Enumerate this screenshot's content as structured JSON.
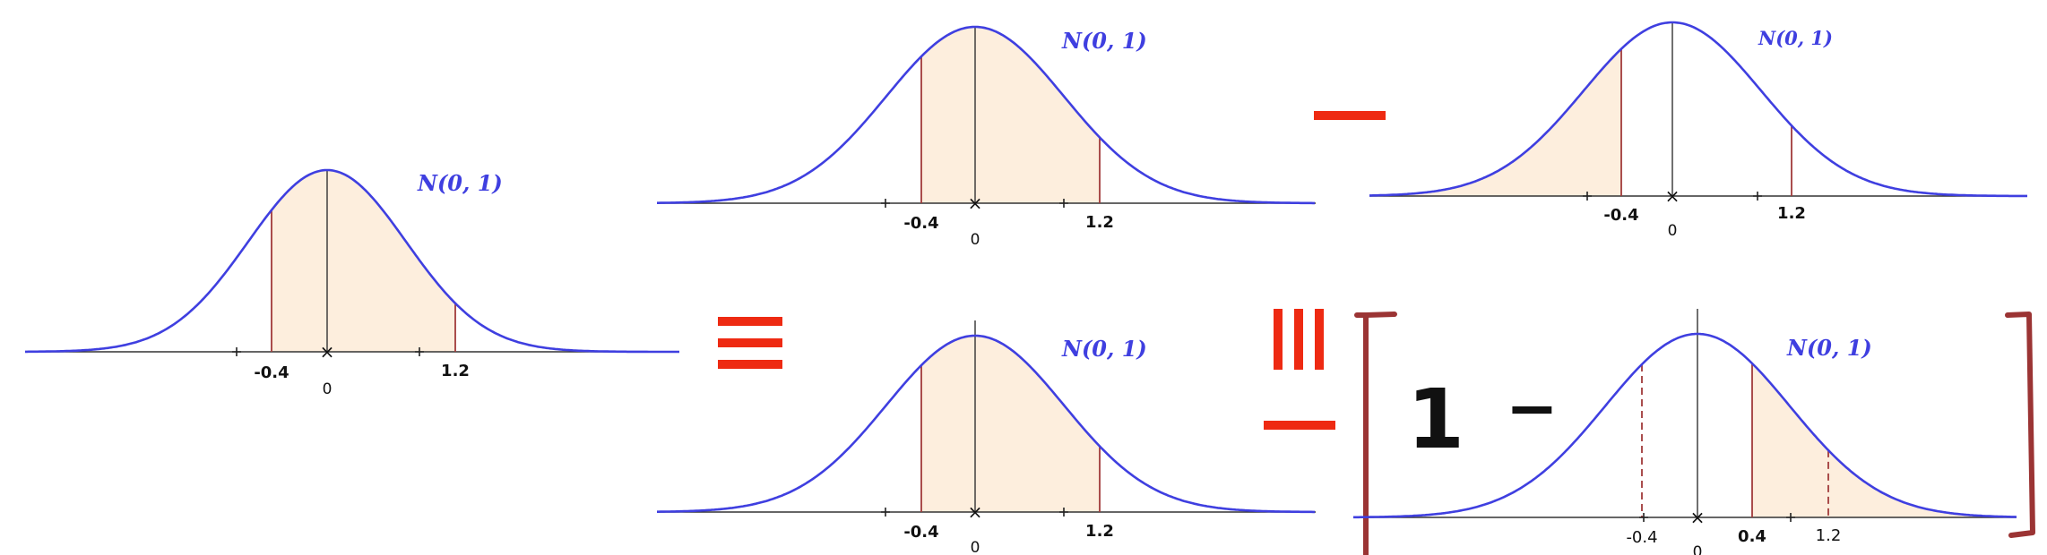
{
  "colors": {
    "curve": "#3f3fe0",
    "fill": "#fdeedd",
    "boundary": "#a03a3a",
    "axis": "#333333",
    "operator": "#ee2a12",
    "bracket": "#9b3434"
  },
  "distribution_label": "N(0,1)",
  "panels": [
    {
      "id": "left",
      "shade": "between",
      "lower": -0.4,
      "upper": 1.2,
      "ticks": [
        "-0.4",
        "0",
        "1.2"
      ]
    },
    {
      "id": "top-middle",
      "shade": "between",
      "lower": -0.4,
      "upper": 1.2,
      "ticks": [
        "-0.4",
        "0",
        "1.2"
      ]
    },
    {
      "id": "top-right",
      "shade": "left-tail",
      "lower": -0.4,
      "upper": 1.2,
      "ticks": [
        "-0.4",
        "0",
        "1.2"
      ]
    },
    {
      "id": "bottom-middle",
      "shade": "between",
      "lower": -0.4,
      "upper": 1.2,
      "ticks": [
        "-0.4",
        "0",
        "1.2"
      ]
    },
    {
      "id": "bottom-right",
      "shade": "right-tail",
      "lower": 0.4,
      "upper": 1.2,
      "ticks": [
        "-0.4",
        "0",
        "0.4",
        "1.2"
      ]
    }
  ],
  "expression": {
    "one": "1",
    "minus": "−"
  }
}
